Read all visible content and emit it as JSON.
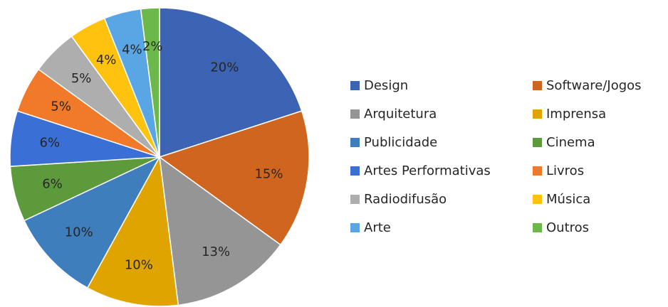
{
  "chart_data": {
    "type": "pie",
    "categories": [
      "Design",
      "Software/Jogos",
      "Arquitetura",
      "Imprensa",
      "Publicidade",
      "Cinema",
      "Artes Performativas",
      "Livros",
      "Radiodifusão",
      "Música",
      "Arte",
      "Outros"
    ],
    "values": [
      20,
      15,
      13,
      10,
      10,
      6,
      6,
      5,
      5,
      4,
      4,
      2
    ],
    "value_labels": [
      "20%",
      "15%",
      "13%",
      "10%",
      "10%",
      "6%",
      "6%",
      "5%",
      "5%",
      "4%",
      "4%",
      "2%"
    ],
    "colors": [
      "#3d63b4",
      "#d0651f",
      "#959595",
      "#e0a400",
      "#3f7ebd",
      "#5d9a3c",
      "#3a6fd6",
      "#f07a2a",
      "#aeaeae",
      "#ffc20e",
      "#5aa5e4",
      "#6cb84a"
    ],
    "legend": "right"
  }
}
